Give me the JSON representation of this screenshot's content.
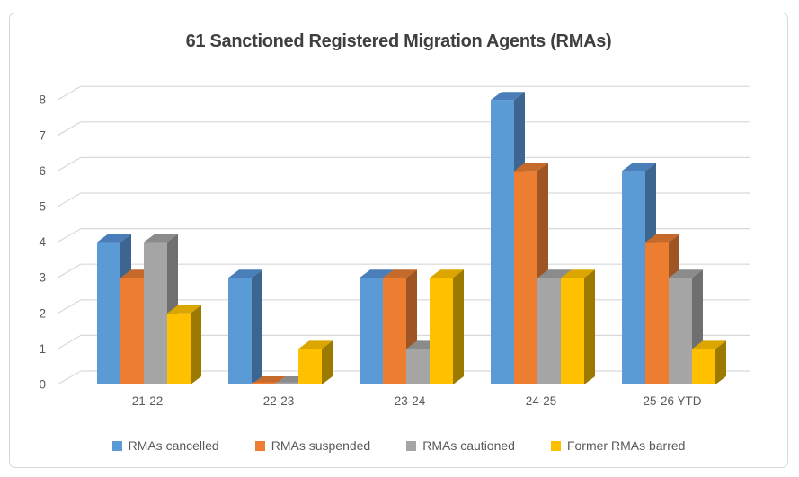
{
  "title": "61 Sanctioned Registered Migration Agents (RMAs)",
  "chart_data": {
    "type": "bar",
    "subtype": "3d-clustered-column",
    "title": "61 Sanctioned Registered Migration Agents (RMAs)",
    "categories": [
      "21-22",
      "22-23",
      "23-24",
      "24-25",
      "25-26 YTD"
    ],
    "series": [
      {
        "name": "RMAs cancelled",
        "color": "#5B9BD5",
        "top": "#4A7EB8",
        "side": "#3C658F",
        "values": [
          4,
          3,
          3,
          8,
          6
        ]
      },
      {
        "name": "RMAs suspended",
        "color": "#ED7D31",
        "top": "#C66A2B",
        "side": "#9E5523",
        "values": [
          3,
          0,
          3,
          6,
          4
        ]
      },
      {
        "name": "RMAs cautioned",
        "color": "#A5A5A5",
        "top": "#8B8B8B",
        "side": "#6F6F6F",
        "values": [
          4,
          0,
          1,
          3,
          3
        ]
      },
      {
        "name": "Former RMAs barred",
        "color": "#FFC000",
        "top": "#DCA600",
        "side": "#9C7A00",
        "values": [
          2,
          1,
          3,
          3,
          1
        ]
      }
    ],
    "ylim": [
      0,
      8
    ],
    "yticks": [
      0,
      1,
      2,
      3,
      4,
      5,
      6,
      7,
      8
    ],
    "xlabel": "",
    "ylabel": "",
    "grid": true,
    "legend_position": "bottom",
    "gridline_color": "#D9D9D9",
    "axis_text_color": "#595959",
    "title_color": "#3F3F3F"
  }
}
